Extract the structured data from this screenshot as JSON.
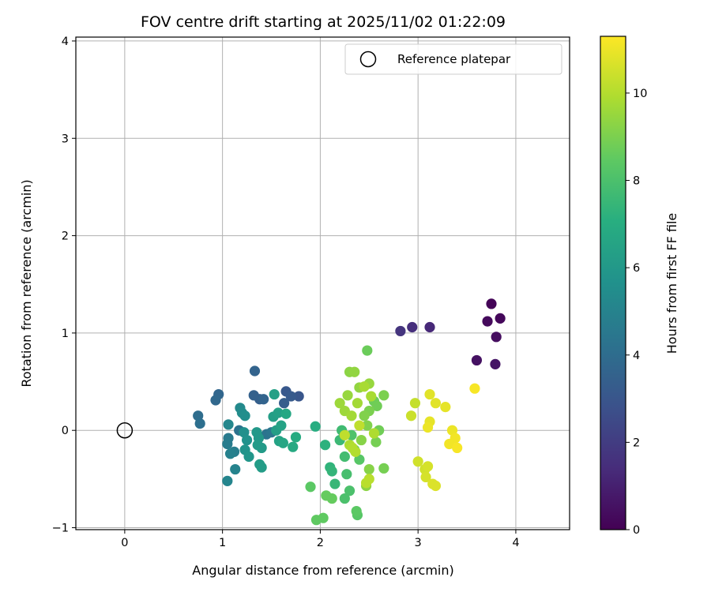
{
  "chart_data": {
    "type": "scatter",
    "title": "FOV centre drift starting at 2025/11/02 01:22:09",
    "xlabel": "Angular distance from reference (arcmin)",
    "ylabel": "Rotation from reference (arcmin)",
    "colorbar_label": "Hours from first FF file",
    "xlim": [
      -0.5,
      4.55
    ],
    "ylim": [
      -1.02,
      4.04
    ],
    "xticks": [
      0,
      1,
      2,
      3,
      4
    ],
    "yticks": [
      -1,
      0,
      1,
      2,
      3,
      4
    ],
    "colorbar_range": [
      0,
      11.3
    ],
    "colorbar_ticks": [
      0,
      2,
      4,
      6,
      8,
      10
    ],
    "colormap": "viridis",
    "grid": true,
    "legend": {
      "position": "upper-right",
      "entries": [
        "Reference platepar"
      ]
    },
    "reference_point": {
      "x": 0,
      "y": 0,
      "name": "Reference platepar"
    },
    "points": [
      {
        "x": 3.75,
        "y": 1.3,
        "t": 0.1
      },
      {
        "x": 3.84,
        "y": 1.15,
        "t": 0.2
      },
      {
        "x": 3.71,
        "y": 1.12,
        "t": 0.3
      },
      {
        "x": 3.8,
        "y": 0.96,
        "t": 0.4
      },
      {
        "x": 3.6,
        "y": 0.72,
        "t": 0.5
      },
      {
        "x": 3.79,
        "y": 0.68,
        "t": 0.6
      },
      {
        "x": 3.12,
        "y": 1.06,
        "t": 1.3
      },
      {
        "x": 2.94,
        "y": 1.06,
        "t": 1.5
      },
      {
        "x": 2.82,
        "y": 1.02,
        "t": 1.7
      },
      {
        "x": 1.78,
        "y": 0.35,
        "t": 3.0
      },
      {
        "x": 1.65,
        "y": 0.4,
        "t": 3.1
      },
      {
        "x": 1.7,
        "y": 0.35,
        "t": 3.2
      },
      {
        "x": 1.63,
        "y": 0.28,
        "t": 3.3
      },
      {
        "x": 1.38,
        "y": 0.32,
        "t": 3.4
      },
      {
        "x": 1.32,
        "y": 0.36,
        "t": 3.5
      },
      {
        "x": 1.33,
        "y": 0.61,
        "t": 3.6
      },
      {
        "x": 1.42,
        "y": 0.32,
        "t": 3.6
      },
      {
        "x": 0.96,
        "y": 0.37,
        "t": 3.7
      },
      {
        "x": 0.93,
        "y": 0.31,
        "t": 3.8
      },
      {
        "x": 0.75,
        "y": 0.15,
        "t": 4.0
      },
      {
        "x": 0.77,
        "y": 0.07,
        "t": 4.1
      },
      {
        "x": 1.17,
        "y": 0.0,
        "t": 4.2
      },
      {
        "x": 1.45,
        "y": -0.04,
        "t": 4.3
      },
      {
        "x": 1.5,
        "y": -0.02,
        "t": 4.4
      },
      {
        "x": 1.06,
        "y": -0.08,
        "t": 4.6
      },
      {
        "x": 1.05,
        "y": -0.14,
        "t": 4.7
      },
      {
        "x": 1.12,
        "y": -0.22,
        "t": 4.8
      },
      {
        "x": 1.08,
        "y": -0.24,
        "t": 4.9
      },
      {
        "x": 1.13,
        "y": -0.4,
        "t": 5.0
      },
      {
        "x": 1.05,
        "y": -0.52,
        "t": 5.1
      },
      {
        "x": 1.06,
        "y": 0.06,
        "t": 5.2
      },
      {
        "x": 1.18,
        "y": 0.23,
        "t": 5.3
      },
      {
        "x": 1.2,
        "y": 0.18,
        "t": 5.4
      },
      {
        "x": 1.23,
        "y": 0.15,
        "t": 5.5
      },
      {
        "x": 1.22,
        "y": -0.02,
        "t": 5.6
      },
      {
        "x": 1.25,
        "y": -0.1,
        "t": 5.7
      },
      {
        "x": 1.23,
        "y": -0.2,
        "t": 5.8
      },
      {
        "x": 1.27,
        "y": -0.27,
        "t": 5.9
      },
      {
        "x": 1.35,
        "y": -0.02,
        "t": 6.0
      },
      {
        "x": 1.37,
        "y": -0.08,
        "t": 6.0
      },
      {
        "x": 1.36,
        "y": -0.15,
        "t": 6.1
      },
      {
        "x": 1.4,
        "y": -0.18,
        "t": 6.1
      },
      {
        "x": 1.38,
        "y": -0.35,
        "t": 6.2
      },
      {
        "x": 1.4,
        "y": -0.38,
        "t": 6.2
      },
      {
        "x": 1.52,
        "y": 0.14,
        "t": 6.3
      },
      {
        "x": 1.55,
        "y": 0.0,
        "t": 6.3
      },
      {
        "x": 1.57,
        "y": 0.18,
        "t": 6.4
      },
      {
        "x": 1.53,
        "y": 0.37,
        "t": 6.4
      },
      {
        "x": 1.6,
        "y": 0.05,
        "t": 6.5
      },
      {
        "x": 1.58,
        "y": -0.11,
        "t": 6.5
      },
      {
        "x": 1.62,
        "y": -0.13,
        "t": 6.6
      },
      {
        "x": 1.65,
        "y": 0.17,
        "t": 6.7
      },
      {
        "x": 1.72,
        "y": -0.17,
        "t": 6.8
      },
      {
        "x": 1.75,
        "y": -0.07,
        "t": 6.9
      },
      {
        "x": 1.95,
        "y": 0.04,
        "t": 7.0
      },
      {
        "x": 2.05,
        "y": -0.15,
        "t": 7.2
      },
      {
        "x": 2.1,
        "y": -0.38,
        "t": 7.3
      },
      {
        "x": 2.12,
        "y": -0.42,
        "t": 7.4
      },
      {
        "x": 2.15,
        "y": -0.55,
        "t": 7.5
      },
      {
        "x": 2.2,
        "y": -0.1,
        "t": 7.6
      },
      {
        "x": 2.22,
        "y": 0.0,
        "t": 7.7
      },
      {
        "x": 2.25,
        "y": -0.27,
        "t": 7.8
      },
      {
        "x": 2.27,
        "y": -0.45,
        "t": 7.9
      },
      {
        "x": 2.3,
        "y": -0.62,
        "t": 8.0
      },
      {
        "x": 2.25,
        "y": -0.7,
        "t": 8.0
      },
      {
        "x": 2.32,
        "y": -0.05,
        "t": 8.1
      },
      {
        "x": 2.35,
        "y": -0.2,
        "t": 8.2
      },
      {
        "x": 2.4,
        "y": -0.3,
        "t": 8.3
      },
      {
        "x": 2.38,
        "y": -0.87,
        "t": 8.3
      },
      {
        "x": 2.37,
        "y": -0.83,
        "t": 8.4
      },
      {
        "x": 1.9,
        "y": -0.58,
        "t": 8.4
      },
      {
        "x": 1.96,
        "y": -0.92,
        "t": 8.5
      },
      {
        "x": 2.03,
        "y": -0.9,
        "t": 8.5
      },
      {
        "x": 2.06,
        "y": -0.67,
        "t": 8.6
      },
      {
        "x": 2.12,
        "y": -0.7,
        "t": 8.6
      },
      {
        "x": 2.48,
        "y": 0.82,
        "t": 8.7
      },
      {
        "x": 2.55,
        "y": 0.3,
        "t": 8.7
      },
      {
        "x": 2.58,
        "y": 0.25,
        "t": 8.8
      },
      {
        "x": 2.6,
        "y": 0.0,
        "t": 8.8
      },
      {
        "x": 2.57,
        "y": -0.12,
        "t": 8.9
      },
      {
        "x": 2.65,
        "y": -0.39,
        "t": 8.9
      },
      {
        "x": 2.65,
        "y": 0.36,
        "t": 9.0
      },
      {
        "x": 2.5,
        "y": 0.2,
        "t": 9.0
      },
      {
        "x": 2.45,
        "y": 0.15,
        "t": 9.1
      },
      {
        "x": 2.48,
        "y": 0.05,
        "t": 9.1
      },
      {
        "x": 2.42,
        "y": -0.1,
        "t": 9.2
      },
      {
        "x": 2.5,
        "y": -0.4,
        "t": 9.2
      },
      {
        "x": 2.47,
        "y": -0.57,
        "t": 9.3
      },
      {
        "x": 2.3,
        "y": 0.6,
        "t": 9.3
      },
      {
        "x": 2.35,
        "y": 0.6,
        "t": 9.4
      },
      {
        "x": 2.4,
        "y": 0.44,
        "t": 9.4
      },
      {
        "x": 2.5,
        "y": 0.48,
        "t": 9.5
      },
      {
        "x": 2.28,
        "y": 0.36,
        "t": 9.5
      },
      {
        "x": 2.2,
        "y": 0.28,
        "t": 9.6
      },
      {
        "x": 2.25,
        "y": 0.2,
        "t": 9.6
      },
      {
        "x": 2.32,
        "y": 0.15,
        "t": 9.7
      },
      {
        "x": 2.38,
        "y": 0.28,
        "t": 9.7
      },
      {
        "x": 2.45,
        "y": 0.45,
        "t": 9.8
      },
      {
        "x": 2.52,
        "y": 0.35,
        "t": 9.8
      },
      {
        "x": 2.55,
        "y": -0.03,
        "t": 9.9
      },
      {
        "x": 2.3,
        "y": -0.15,
        "t": 9.9
      },
      {
        "x": 2.33,
        "y": -0.18,
        "t": 10.0
      },
      {
        "x": 2.36,
        "y": -0.22,
        "t": 10.0
      },
      {
        "x": 2.5,
        "y": -0.5,
        "t": 10.1
      },
      {
        "x": 2.47,
        "y": -0.54,
        "t": 10.1
      },
      {
        "x": 2.25,
        "y": -0.05,
        "t": 10.2
      },
      {
        "x": 2.4,
        "y": 0.05,
        "t": 10.2
      },
      {
        "x": 2.97,
        "y": 0.28,
        "t": 10.3
      },
      {
        "x": 2.93,
        "y": 0.15,
        "t": 10.4
      },
      {
        "x": 3.0,
        "y": -0.32,
        "t": 10.5
      },
      {
        "x": 3.07,
        "y": -0.4,
        "t": 10.5
      },
      {
        "x": 3.1,
        "y": -0.37,
        "t": 10.6
      },
      {
        "x": 3.08,
        "y": -0.48,
        "t": 10.6
      },
      {
        "x": 3.15,
        "y": -0.55,
        "t": 10.7
      },
      {
        "x": 3.18,
        "y": -0.57,
        "t": 10.7
      },
      {
        "x": 3.12,
        "y": 0.37,
        "t": 10.8
      },
      {
        "x": 3.18,
        "y": 0.28,
        "t": 10.8
      },
      {
        "x": 3.28,
        "y": 0.24,
        "t": 10.9
      },
      {
        "x": 3.12,
        "y": 0.09,
        "t": 10.9
      },
      {
        "x": 3.1,
        "y": 0.03,
        "t": 11.0
      },
      {
        "x": 3.35,
        "y": 0.0,
        "t": 11.0
      },
      {
        "x": 3.38,
        "y": -0.08,
        "t": 11.1
      },
      {
        "x": 3.32,
        "y": -0.14,
        "t": 11.1
      },
      {
        "x": 3.4,
        "y": -0.18,
        "t": 11.2
      },
      {
        "x": 3.58,
        "y": 0.43,
        "t": 11.2
      }
    ]
  }
}
